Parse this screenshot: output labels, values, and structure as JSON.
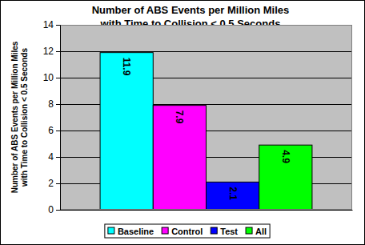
{
  "chart_data": {
    "type": "bar",
    "title": [
      "Number of ABS Events per Million Miles",
      "with Time to Collision < 0.5 Seconds"
    ],
    "y_label": [
      "Number of ABS Events per Million Miles",
      "with Time to Collision < 0.5 Seconds"
    ],
    "categories": [
      null
    ],
    "series": [
      {
        "name": "Baseline",
        "color": "#00ffff",
        "values": [
          11.9
        ]
      },
      {
        "name": "Control",
        "color": "#ff00ff",
        "values": [
          7.9
        ]
      },
      {
        "name": "Test",
        "color": "#0000ff",
        "values": [
          2.1
        ]
      },
      {
        "name": "All",
        "color": "#00ff00",
        "values": [
          4.9
        ]
      }
    ],
    "ylim": [
      0,
      14
    ],
    "yticks": [
      0,
      2,
      4,
      6,
      8,
      10,
      12,
      14
    ],
    "grid": true,
    "legend": "bottom",
    "data_labels": true
  }
}
